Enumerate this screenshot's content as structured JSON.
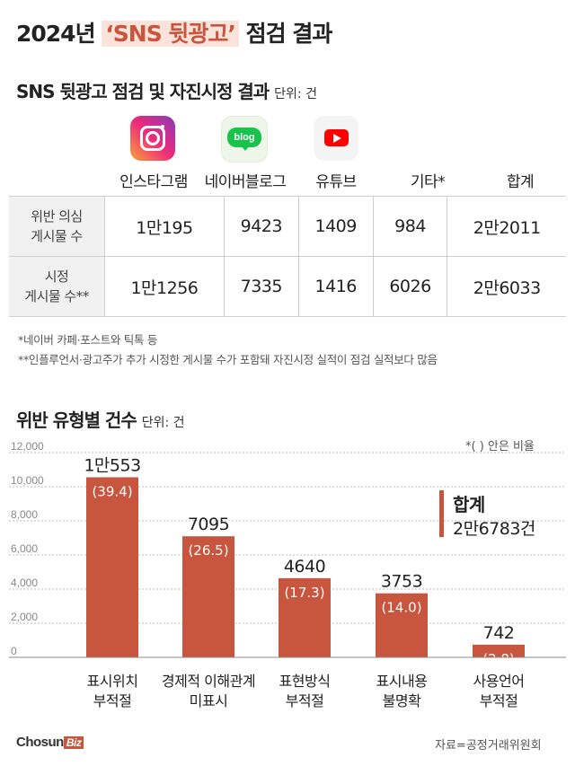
{
  "title": {
    "prefix": "2024년 ",
    "highlight": "‘SNS 뒷광고’",
    "suffix": " 점검 결과"
  },
  "table_section": {
    "title": "SNS 뒷광고 점검 및 자진시정 결과",
    "unit": "단위: 건"
  },
  "platforms": [
    {
      "name": "인스타그램",
      "icon": "instagram-icon"
    },
    {
      "name": "네이버블로그",
      "icon": "naver-blog-icon",
      "icon_text": "blog"
    },
    {
      "name": "유튜브",
      "icon": "youtube-icon"
    },
    {
      "name": "기타*"
    },
    {
      "name": "합계"
    }
  ],
  "rows": [
    {
      "label_lines": [
        "위반 의심",
        "게시물 수"
      ],
      "values": [
        "1만195",
        "9423",
        "1409",
        "984",
        "2만2011"
      ]
    },
    {
      "label_lines": [
        "시정",
        "게시물 수**"
      ],
      "values": [
        "1만1256",
        "7335",
        "1416",
        "6026",
        "2만6033"
      ]
    }
  ],
  "notes": [
    "*네이버 카페·포스트와 틱톡 등",
    "**인플루언서·광고주가 추가 시정한 게시물 수가 포함돼 자진시정 실적이 점검 실적보다 많음"
  ],
  "chart_section": {
    "title": "위반 유형별 건수",
    "unit": "단위: 건"
  },
  "chart_data": {
    "type": "bar",
    "categories": [
      [
        "표시위치",
        "부적절"
      ],
      [
        "경제적 이해관계",
        "미표시"
      ],
      [
        "표현방식",
        "부적절"
      ],
      [
        "표시내용",
        "불명확"
      ],
      [
        "사용언어",
        "부적절"
      ]
    ],
    "values": [
      10553,
      7095,
      4640,
      3753,
      742
    ],
    "value_labels": [
      "1만553",
      "7095",
      "4640",
      "3753",
      "742"
    ],
    "percent_labels": [
      "(39.4)",
      "(26.5)",
      "(17.3)",
      "(14.0)",
      "(2.8)"
    ],
    "ylim": [
      0,
      12000
    ],
    "yticks": [
      0,
      2000,
      4000,
      6000,
      8000,
      10000,
      12000
    ],
    "ytick_labels": [
      "0",
      "2,000",
      "4,000",
      "6,000",
      "8,000",
      "10,000",
      "12,000"
    ],
    "grid": true,
    "bar_color": "#c8553d",
    "annotation": "*(     ) 안은 비율",
    "total_label": "합계",
    "total_value": "2만6783건"
  },
  "source": "자료=공정거래위원회",
  "brand": {
    "name": "Chosun",
    "badge": "Biz"
  },
  "colors": {
    "accent": "#c8553d",
    "header_bg": "#f1f1f1"
  }
}
